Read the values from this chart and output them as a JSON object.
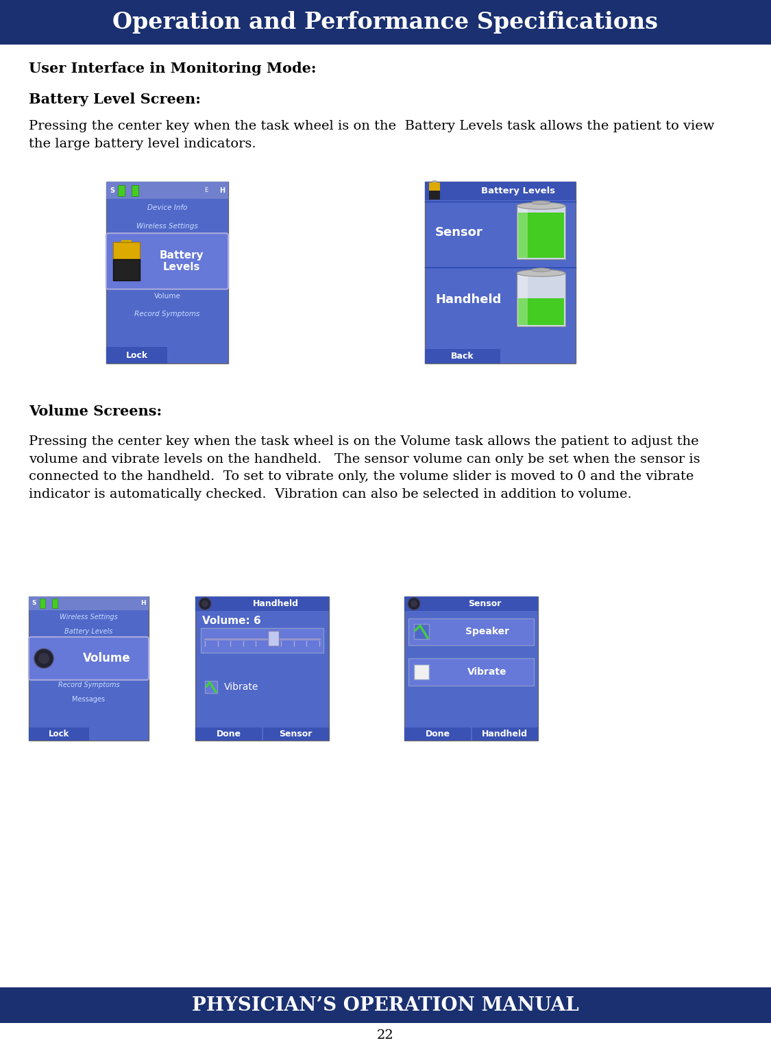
{
  "title_text": "Operation and Performance Specifications",
  "title_bg": "#1a3070",
  "title_color": "#ffffff",
  "footer_text": "PHYSICIAN’S OPERATION MANUAL",
  "footer_bg": "#1a3070",
  "footer_color": "#ffffff",
  "page_number": "22",
  "body_bg": "#ffffff",
  "heading1": "User Interface in Monitoring Mode:",
  "heading2": "Battery Level Screen:",
  "para1": "Pressing the center key when the task wheel is on the  Battery Levels task allows the patient to view\nthe large battery level indicators.",
  "heading3": "Volume Screens:",
  "para2": "Pressing the center key when the task wheel is on the Volume task allows the patient to adjust the\nvolume and vibrate levels on the handheld.   The sensor volume can only be set when the sensor is\nconnected to the handheld.  To set to vibrate only, the volume slider is moved to 0 and the vibrate\nindicator is automatically checked.  Vibration can also be selected in addition to volume.",
  "screen_blue_dark": "#3a52b4",
  "screen_blue_mid": "#5068c8",
  "screen_blue_light": "#6678d8",
  "screen_blue_header": "#3a52b4",
  "screen_blue_status": "#7080cc",
  "green_fill": "#44cc22",
  "battery_gold_top": "#ddaa00",
  "battery_dark": "#1a1a1a",
  "white": "#ffffff",
  "text_body_size": 14,
  "heading_size": 15,
  "title_size": 24
}
